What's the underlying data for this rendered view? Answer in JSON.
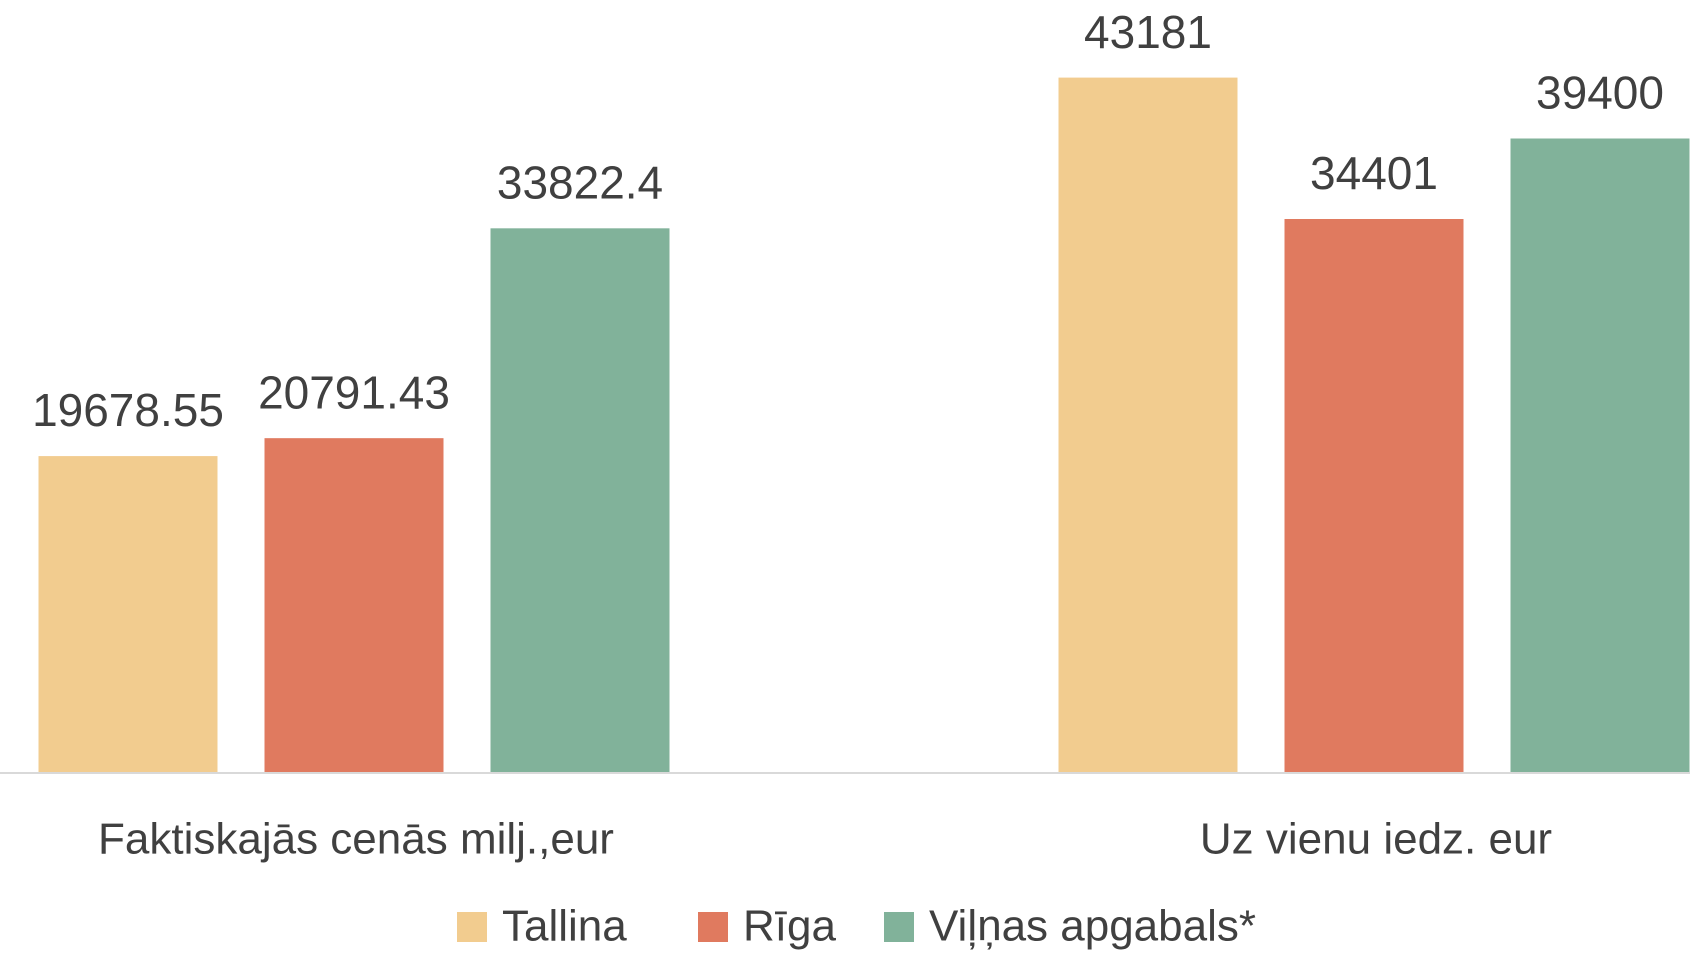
{
  "chart_data": {
    "type": "bar",
    "categories": [
      "Faktiskajās cenās milj.,eur",
      "Uz vienu iedz. eur"
    ],
    "series": [
      {
        "name": "Tallina",
        "color": "#f2cc8f",
        "values": [
          19678.55,
          43181
        ]
      },
      {
        "name": "Rīga",
        "color": "#e07a5f",
        "values": [
          20791.43,
          34401
        ]
      },
      {
        "name": "Viļņas apgabals*",
        "color": "#81b29a",
        "values": [
          33822.4,
          39400
        ]
      }
    ],
    "ylim": [
      0,
      48000
    ]
  }
}
